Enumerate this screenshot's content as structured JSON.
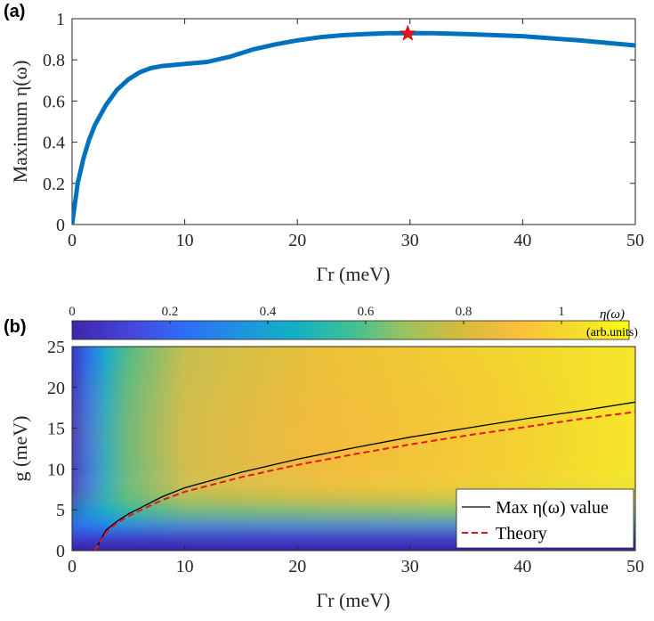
{
  "chart_data": [
    {
      "panel": "(a)",
      "type": "line",
      "xlabel": "Γr (meV)",
      "ylabel": "Maximum η(ω)",
      "xlim": [
        0,
        50
      ],
      "ylim": [
        0,
        1
      ],
      "xticks": [
        0,
        10,
        20,
        30,
        40,
        50
      ],
      "yticks": [
        0,
        0.2,
        0.4,
        0.6,
        0.8,
        1
      ],
      "grid": false,
      "series": [
        {
          "color": "#0072bd",
          "x": [
            0,
            0.5,
            1,
            1.5,
            2,
            3,
            4,
            5,
            6,
            7,
            8,
            10,
            12,
            14,
            16,
            18,
            20,
            22,
            24,
            26,
            28,
            30,
            32,
            35,
            40,
            45,
            50
          ],
          "y": [
            0,
            0.2,
            0.32,
            0.41,
            0.48,
            0.58,
            0.655,
            0.705,
            0.74,
            0.76,
            0.77,
            0.78,
            0.79,
            0.815,
            0.85,
            0.875,
            0.895,
            0.91,
            0.92,
            0.925,
            0.93,
            0.93,
            0.93,
            0.925,
            0.915,
            0.895,
            0.87
          ]
        }
      ],
      "marker": {
        "x": 29.8,
        "y": 0.928,
        "color": "#e8141c",
        "shape": "star"
      }
    },
    {
      "panel": "(b)",
      "type": "heatmap",
      "xlabel": "Γr (meV)",
      "ylabel": "g (meV)",
      "xlim": [
        0,
        50
      ],
      "ylim": [
        0,
        25
      ],
      "xticks": [
        0,
        10,
        20,
        30,
        40,
        50
      ],
      "yticks": [
        0,
        5,
        10,
        15,
        20,
        25
      ],
      "colorbar": {
        "label": "η(ω)",
        "unit": "(arb.units)",
        "range": [
          0,
          1
        ],
        "ticks": [
          0,
          0.2,
          0.4,
          0.6,
          0.8,
          1
        ],
        "colormap": [
          "#3e26a8",
          "#4743d9",
          "#2f6df6",
          "#1f93df",
          "#13b0c3",
          "#3fbf96",
          "#9cc45c",
          "#d7ba3c",
          "#fbbe3d",
          "#f5dc2a",
          "#f9fb15"
        ]
      },
      "series": [
        {
          "name": "Max η(ω) value",
          "color": "#000000",
          "style": "solid",
          "x": [
            2.1,
            2.5,
            3,
            4,
            5,
            6,
            8,
            10,
            15,
            20,
            25,
            30,
            35,
            40,
            45,
            50
          ],
          "y": [
            0.2,
            1.2,
            2.5,
            3.6,
            4.5,
            5.2,
            6.6,
            7.7,
            9.6,
            11.2,
            12.6,
            13.9,
            15.0,
            16.1,
            17.1,
            18.2
          ]
        },
        {
          "name": "Theory",
          "color": "#e8141c",
          "style": "dashed",
          "x": [
            2,
            2.5,
            3,
            4,
            5,
            6,
            8,
            10,
            15,
            20,
            25,
            30,
            35,
            40,
            45,
            50
          ],
          "y": [
            0,
            1.1,
            2.2,
            3.4,
            4.2,
            4.9,
            6.2,
            7.2,
            9.0,
            10.5,
            11.8,
            13.0,
            14.1,
            15.1,
            16.1,
            17.0
          ]
        }
      ],
      "legend_position": "bottom-right"
    }
  ]
}
